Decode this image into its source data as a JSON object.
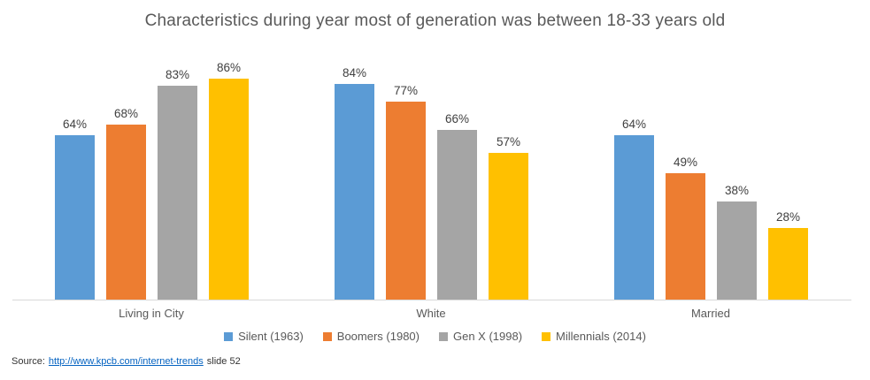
{
  "title": "Characteristics during year most of generation was between 18-33 years old",
  "chart_data": {
    "type": "bar",
    "title": "Characteristics during year most of generation was between 18-33 years old",
    "categories": [
      "Living in City",
      "White",
      "Married"
    ],
    "series": [
      {
        "name": "Silent (1963)",
        "color": "#5B9BD5",
        "values": [
          64,
          84,
          64
        ]
      },
      {
        "name": "Boomers (1980)",
        "color": "#ED7D31",
        "values": [
          68,
          77,
          49
        ]
      },
      {
        "name": "Gen X (1998)",
        "color": "#A5A5A5",
        "values": [
          83,
          66,
          38
        ]
      },
      {
        "name": "Millennials (2014)",
        "color": "#FFC000",
        "values": [
          86,
          57,
          28
        ]
      }
    ],
    "value_suffix": "%",
    "data_labels": true,
    "xlabel": "",
    "ylabel": "",
    "ylim": [
      0,
      100
    ],
    "grid": false,
    "axis_line_color": "#D9D9D9",
    "legend_position": "bottom"
  },
  "source": {
    "prefix": "Source:",
    "link_text": "http://www.kpcb.com/internet-trends",
    "suffix": "slide 52",
    "link_color": "#0563C1"
  }
}
